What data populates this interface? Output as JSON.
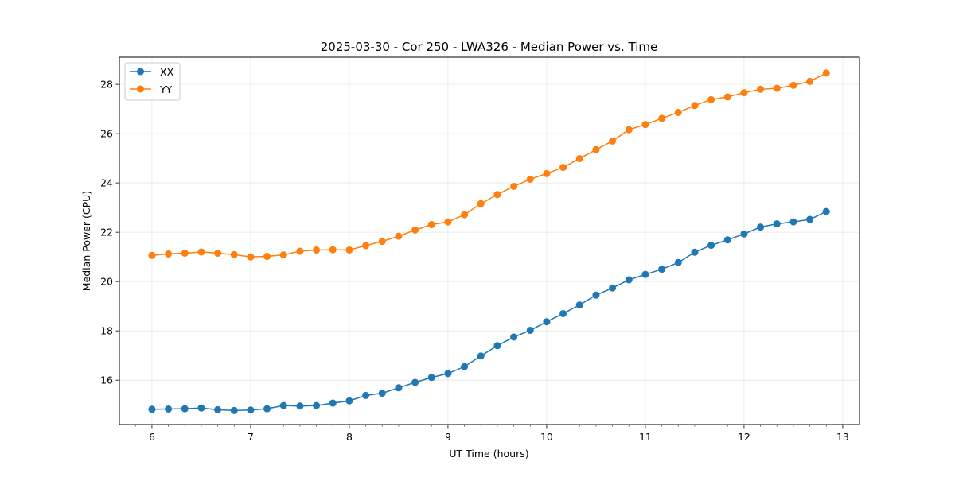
{
  "chart_data": {
    "type": "line",
    "title": "2025-03-30 - Cor 250 - LWA326 - Median Power vs. Time",
    "xlabel": "UT Time (hours)",
    "ylabel": "Median Power (CPU)",
    "xlim": [
      5.67,
      13.17
    ],
    "ylim": [
      14.2,
      29.1
    ],
    "xticks": [
      6,
      7,
      8,
      9,
      10,
      11,
      12,
      13
    ],
    "xtick_labels": [
      "6",
      "7",
      "8",
      "9",
      "10",
      "11",
      "12",
      "13"
    ],
    "yticks": [
      16,
      18,
      20,
      22,
      24,
      26,
      28
    ],
    "ytick_labels": [
      "16",
      "18",
      "20",
      "22",
      "24",
      "26",
      "28"
    ],
    "grid": true,
    "legend_position": "top-left",
    "x": [
      6.0,
      6.1667,
      6.3333,
      6.5,
      6.6667,
      6.8333,
      7.0,
      7.1667,
      7.3333,
      7.5,
      7.6667,
      7.8333,
      8.0,
      8.1667,
      8.3333,
      8.5,
      8.6667,
      8.8333,
      9.0,
      9.1667,
      9.3333,
      9.5,
      9.6667,
      9.8333,
      10.0,
      10.1667,
      10.3333,
      10.5,
      10.6667,
      10.8333,
      11.0,
      11.1667,
      11.3333,
      11.5,
      11.6667,
      11.8333,
      12.0,
      12.1667,
      12.3333,
      12.5,
      12.6667,
      12.8333
    ],
    "series": [
      {
        "name": "XX",
        "color": "#1f77b4",
        "values": [
          14.82,
          14.83,
          14.84,
          14.87,
          14.8,
          14.77,
          14.79,
          14.84,
          14.97,
          14.95,
          14.97,
          15.07,
          15.16,
          15.38,
          15.47,
          15.69,
          15.91,
          16.11,
          16.27,
          16.55,
          16.98,
          17.4,
          17.75,
          18.02,
          18.37,
          18.7,
          19.05,
          19.45,
          19.74,
          20.07,
          20.29,
          20.5,
          20.77,
          21.19,
          21.47,
          21.69,
          21.93,
          22.21,
          22.34,
          22.42,
          22.52,
          22.84
        ]
      },
      {
        "name": "YY",
        "color": "#ff7f0e",
        "values": [
          21.06,
          21.12,
          21.15,
          21.2,
          21.15,
          21.09,
          21.0,
          21.02,
          21.08,
          21.23,
          21.28,
          21.29,
          21.28,
          21.46,
          21.63,
          21.84,
          22.09,
          22.31,
          22.42,
          22.71,
          23.16,
          23.53,
          23.86,
          24.15,
          24.38,
          24.63,
          24.99,
          25.35,
          25.7,
          26.16,
          26.37,
          26.62,
          26.86,
          27.14,
          27.38,
          27.49,
          27.66,
          27.8,
          27.84,
          27.96,
          28.12,
          28.46
        ]
      }
    ]
  }
}
